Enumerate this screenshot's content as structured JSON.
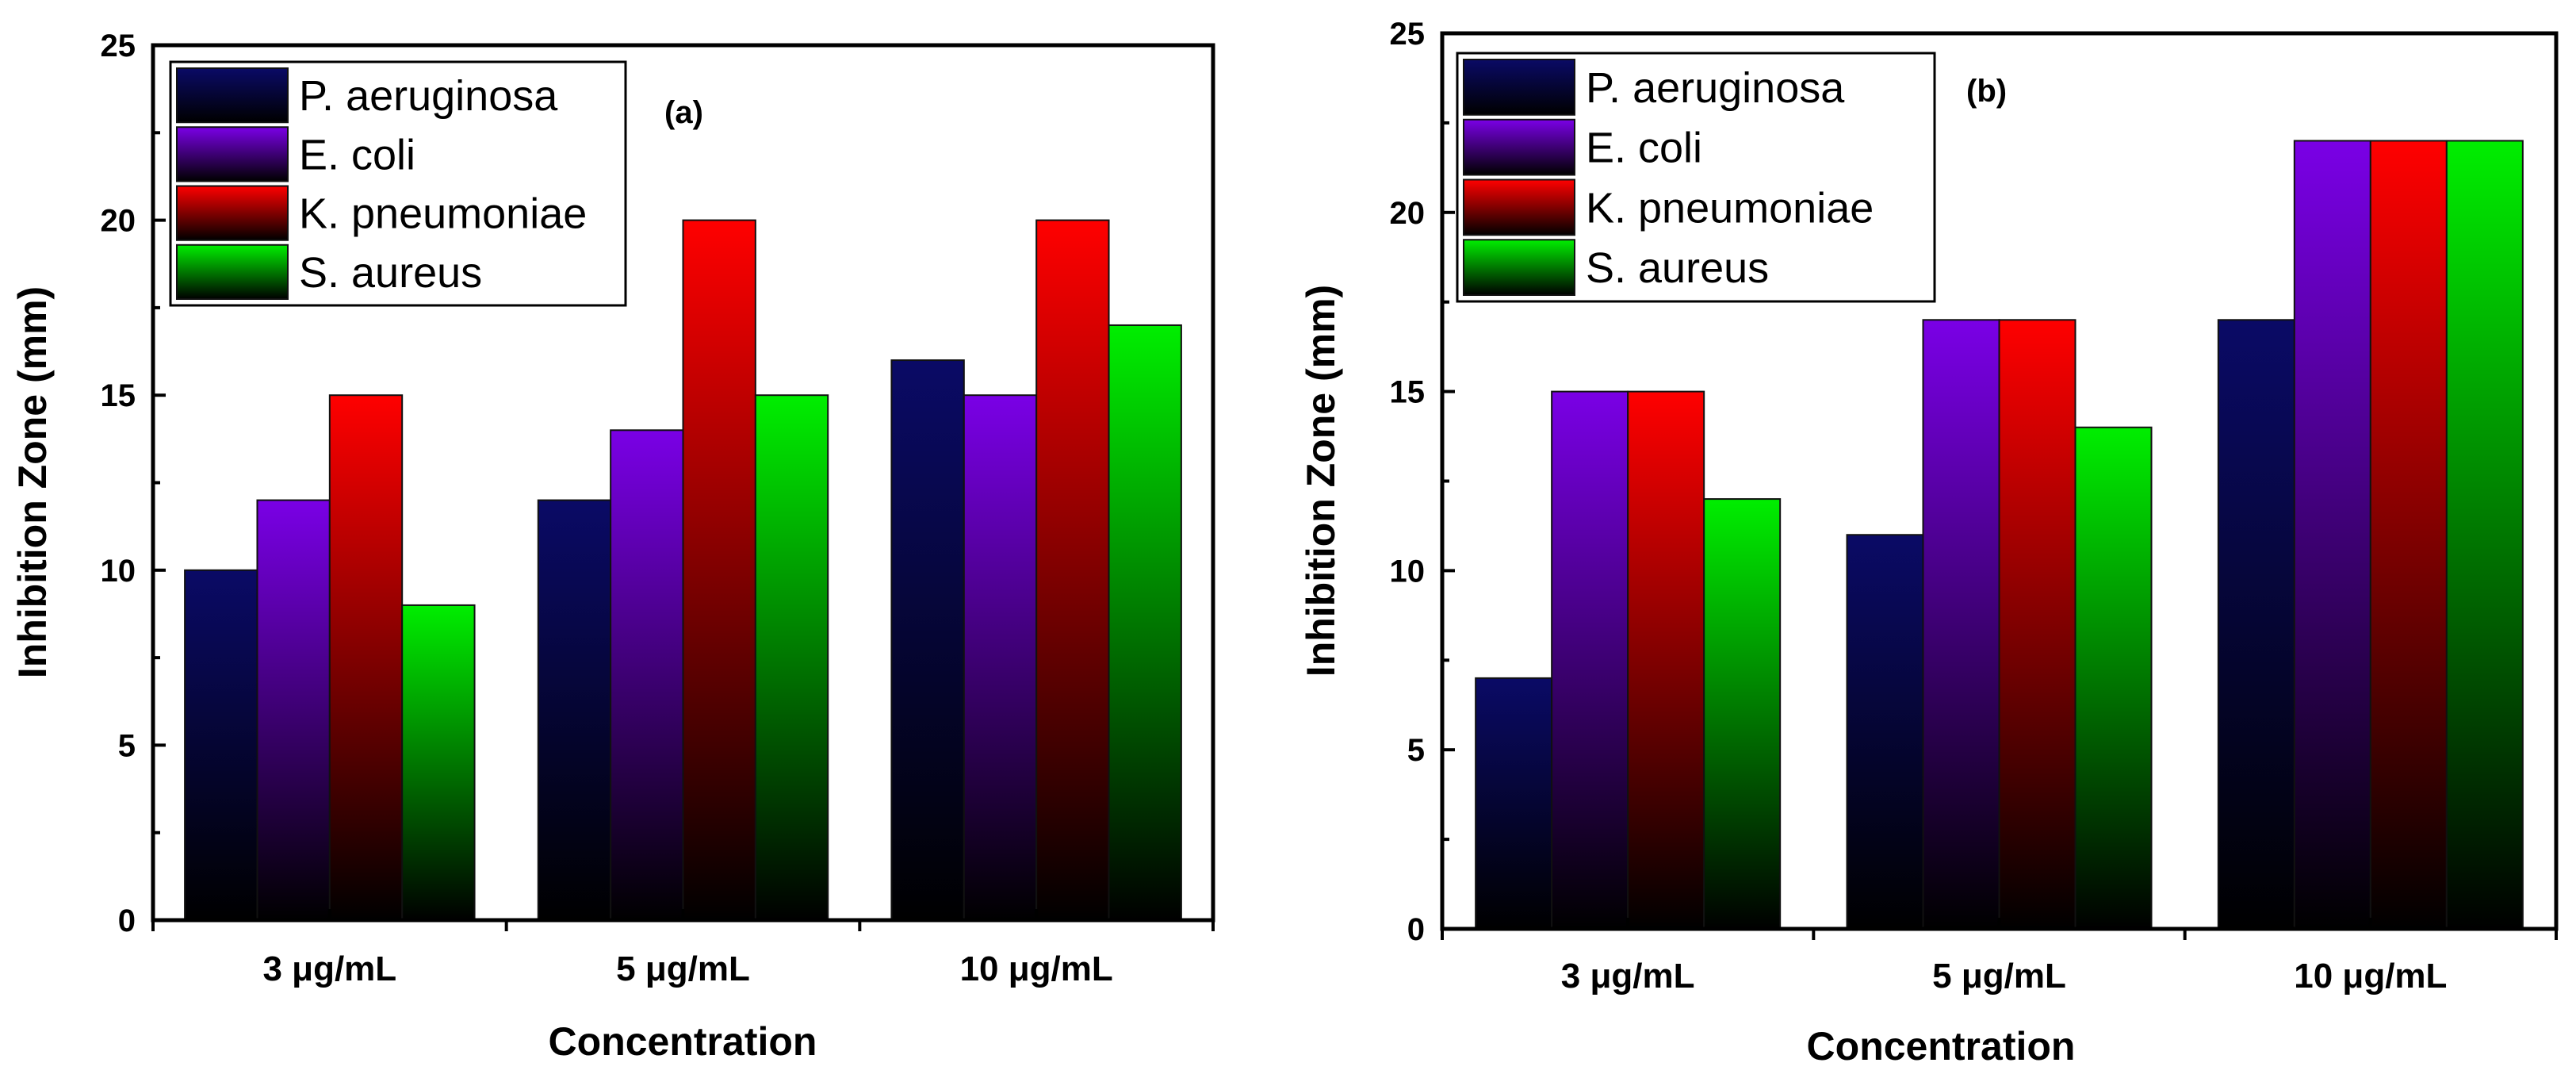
{
  "chart_data": [
    {
      "type": "bar",
      "panel_label": "(a)",
      "categories": [
        "3 μg/mL",
        "5 μg/mL",
        "10 μg/mL"
      ],
      "series": [
        {
          "name": "P. aeruginosa",
          "color": "#0a0a66",
          "values": [
            10,
            12,
            16
          ]
        },
        {
          "name": "E. coli",
          "color": "#7a00e6",
          "values": [
            12,
            14,
            15
          ]
        },
        {
          "name": "K. pneumoniae",
          "color": "#ff0000",
          "values": [
            15,
            20,
            20
          ]
        },
        {
          "name": "S. aureus",
          "color": "#00ee00",
          "values": [
            9,
            15,
            17
          ]
        }
      ],
      "xlabel": "Concentration",
      "ylabel": "Inhibition Zone (mm)",
      "ylim": [
        0,
        25
      ],
      "yticks": [
        "0",
        "5",
        "10",
        "15",
        "20",
        "25"
      ],
      "legend_position": "top-left"
    },
    {
      "type": "bar",
      "panel_label": "(b)",
      "categories": [
        "3 μg/mL",
        "5 μg/mL",
        "10 μg/mL"
      ],
      "series": [
        {
          "name": "P. aeruginosa",
          "color": "#0a0a66",
          "values": [
            7,
            11,
            17
          ]
        },
        {
          "name": "E. coli",
          "color": "#7a00e6",
          "values": [
            15,
            17,
            22
          ]
        },
        {
          "name": "K. pneumoniae",
          "color": "#ff0000",
          "values": [
            15,
            17,
            22
          ]
        },
        {
          "name": "S. aureus",
          "color": "#00ee00",
          "values": [
            12,
            14,
            22
          ]
        }
      ],
      "xlabel": "Concentration",
      "ylabel": "Inhibition Zone (mm)",
      "ylim": [
        0,
        25
      ],
      "yticks": [
        "0",
        "5",
        "10",
        "15",
        "20",
        "25"
      ],
      "legend_position": "top-left"
    }
  ]
}
